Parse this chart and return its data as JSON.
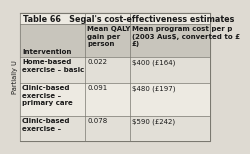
{
  "title": "Table 66   Segal's cost-effectiveness estimates",
  "col1_header": "Intervention",
  "col2_header": "Mean QALY\ngain per\nperson",
  "col3_header": "Mean program cost per p\n(2003 Aus$, converted to £\n£)",
  "rows": [
    [
      "Home-based\nexercise – basic",
      "0.022",
      "$400 (£164)"
    ],
    [
      "Clinic-based\nexercise –\nprimary care",
      "0.091",
      "$480 (£197)"
    ],
    [
      "Clinic-based\nexercise –",
      "0.078",
      "$590 (£242)"
    ]
  ],
  "outer_bg": "#dedad2",
  "table_bg": "#edeae2",
  "header_bg": "#c8c5bc",
  "row_bg_alt": "#e2dfd7",
  "border_color": "#7a7870",
  "text_color": "#1a1a1a",
  "side_label": "Partially U",
  "title_fontsize": 5.8,
  "header_fontsize": 5.0,
  "cell_fontsize": 5.0,
  "side_fontsize": 4.8
}
